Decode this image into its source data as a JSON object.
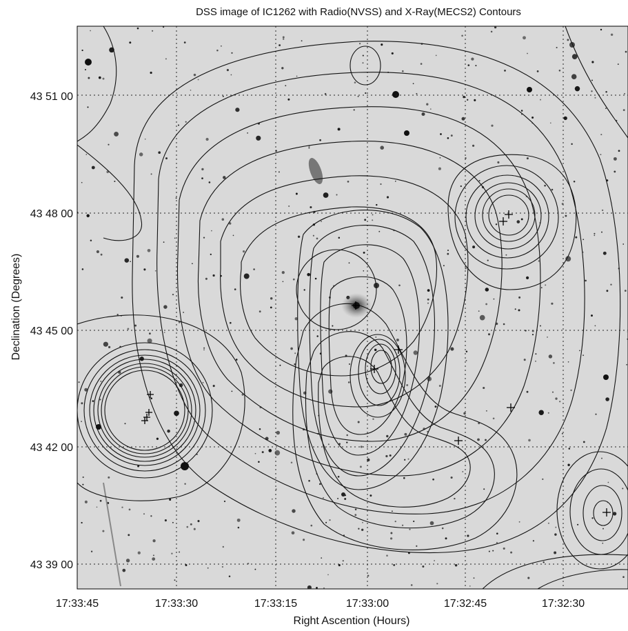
{
  "title": "DSS image of IC1262 with Radio(NVSS) and X-Ray(MECS2) Contours",
  "xlabel": "Right Ascention (Hours)",
  "ylabel": "Declination (Degrees)",
  "x_ticks": [
    "17:33:45",
    "17:33:30",
    "17:33:15",
    "17:33:00",
    "17:32:45",
    "17:32:30"
  ],
  "y_ticks": [
    "43 51 00",
    "43 48 00",
    "43 45 00",
    "43 42 00",
    "43 39 00"
  ],
  "grid": true,
  "colors": {
    "background_sky": "#d9d9d9",
    "contour": "#111111",
    "stars": "#1a1a1a"
  }
}
